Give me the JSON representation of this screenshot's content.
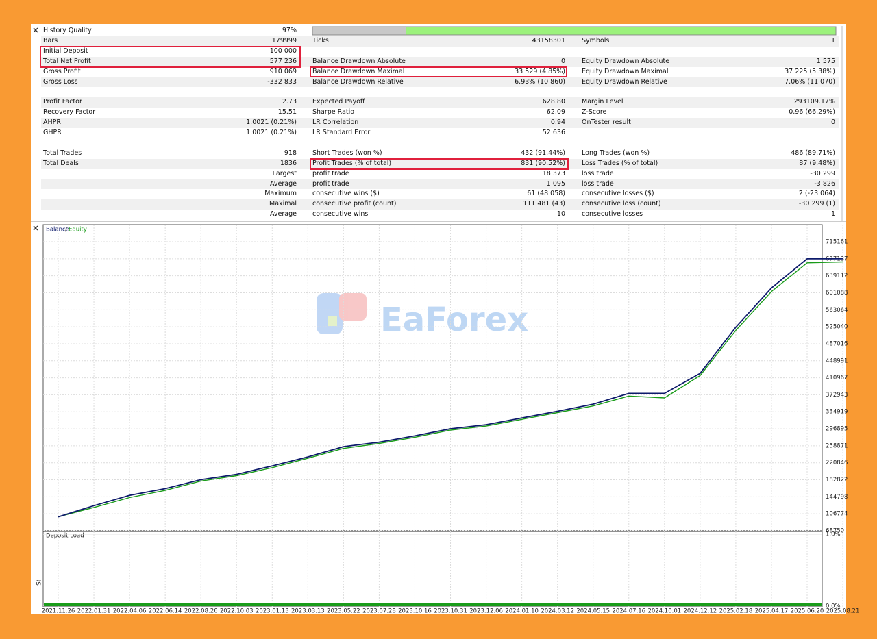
{
  "report": {
    "groups": [
      {
        "rows": [
          [
            "History Quality",
            "97%",
            null,
            null,
            null,
            null
          ],
          [
            "Bars",
            "179999",
            "Ticks",
            "43158301",
            "Symbols",
            "1"
          ],
          [
            "Initial Deposit",
            "100 000",
            null,
            null,
            null,
            null
          ],
          [
            "Total Net Profit",
            "577 236",
            "Balance Drawdown Absolute",
            "0",
            "Equity Drawdown Absolute",
            "1 575"
          ],
          [
            "Gross Profit",
            "910 069",
            "Balance Drawdown Maximal",
            "33 529 (4.85%)",
            "Equity Drawdown Maximal",
            "37 225 (5.38%)"
          ],
          [
            "Gross Loss",
            "-332 833",
            "Balance Drawdown Relative",
            "6.93% (10 860)",
            "Equity Drawdown Relative",
            "7.06% (11 070)"
          ]
        ]
      },
      {
        "rows": [
          [
            "Profit Factor",
            "2.73",
            "Expected Payoff",
            "628.80",
            "Margin Level",
            "293109.17%"
          ],
          [
            "Recovery Factor",
            "15.51",
            "Sharpe Ratio",
            "62.09",
            "Z-Score",
            "0.96 (66.29%)"
          ],
          [
            "AHPR",
            "1.0021 (0.21%)",
            "LR Correlation",
            "0.94",
            "OnTester result",
            "0"
          ],
          [
            "GHPR",
            "1.0021 (0.21%)",
            "LR Standard Error",
            "52 636",
            null,
            null
          ]
        ]
      },
      {
        "rows": [
          [
            "Total Trades",
            "918",
            "Short Trades (won %)",
            "432 (91.44%)",
            "Long Trades (won %)",
            "486 (89.71%)"
          ],
          [
            "Total Deals",
            "1836",
            "Profit Trades (% of total)",
            "831 (90.52%)",
            "Loss Trades (% of total)",
            "87 (9.48%)"
          ],
          [
            null,
            "Largest",
            "profit trade",
            "18 373",
            "loss trade",
            "-30 299"
          ],
          [
            null,
            "Average",
            "profit trade",
            "1 095",
            "loss trade",
            "-3 826"
          ],
          [
            null,
            "Maximum",
            "consecutive wins ($)",
            "61 (48 058)",
            "consecutive losses ($)",
            "2 (-23 064)"
          ],
          [
            null,
            "Maximal",
            "consecutive profit (count)",
            "111 481 (43)",
            "consecutive loss (count)",
            "-30 299 (1)"
          ],
          [
            null,
            "Average",
            "consecutive wins",
            "10",
            "consecutive losses",
            "1"
          ]
        ]
      }
    ]
  },
  "watermark": "EaForex",
  "side_label": "Strategy Tester",
  "chart_data": [
    {
      "type": "line",
      "categories": [
        "2021.11.26",
        "2022.01.31",
        "2022.04.06",
        "2022.06.14",
        "2022.08.26",
        "2022.10.03",
        "2023.01.13",
        "2023.03.13",
        "2023.05.22",
        "2023.07.28",
        "2023.10.16",
        "2023.10.31",
        "2023.12.06",
        "2024.01.10",
        "2024.03.12",
        "2024.05.15",
        "2024.07.16",
        "2024.10.01",
        "2024.12.12",
        "2025.02.18",
        "2025.04.17",
        "2025.06.20",
        "2025.08.21"
      ],
      "series": [
        {
          "name": "Balance",
          "color": "#0d1a6b",
          "values": [
            100000,
            125000,
            148000,
            163000,
            183000,
            195000,
            214000,
            234000,
            257000,
            267000,
            281000,
            297000,
            306000,
            321000,
            336000,
            352000,
            376000,
            376000,
            421000,
            524000,
            612000,
            677000,
            677236
          ]
        },
        {
          "name": "Equity",
          "color": "#1a9c1a",
          "values": [
            100000,
            121000,
            143000,
            159000,
            180000,
            192000,
            210000,
            231000,
            253000,
            264000,
            278000,
            294000,
            303000,
            318000,
            333000,
            348000,
            370000,
            366000,
            416000,
            517000,
            604000,
            668000,
            670000
          ]
        }
      ],
      "ylim": [
        68750,
        753500
      ],
      "yticks": [
        68750,
        106774,
        144798,
        182822,
        220846,
        258871,
        296895,
        334919,
        372943,
        410967,
        448991,
        487016,
        525040,
        563064,
        601088,
        639112,
        677137,
        715161
      ],
      "grid": true
    },
    {
      "type": "area",
      "title": "Deposit Load",
      "ylim": [
        0,
        1
      ],
      "yticks": [
        {
          "value": 1.0,
          "label": "1.0%"
        },
        {
          "value": 0,
          "label": "0.0%"
        }
      ]
    }
  ]
}
